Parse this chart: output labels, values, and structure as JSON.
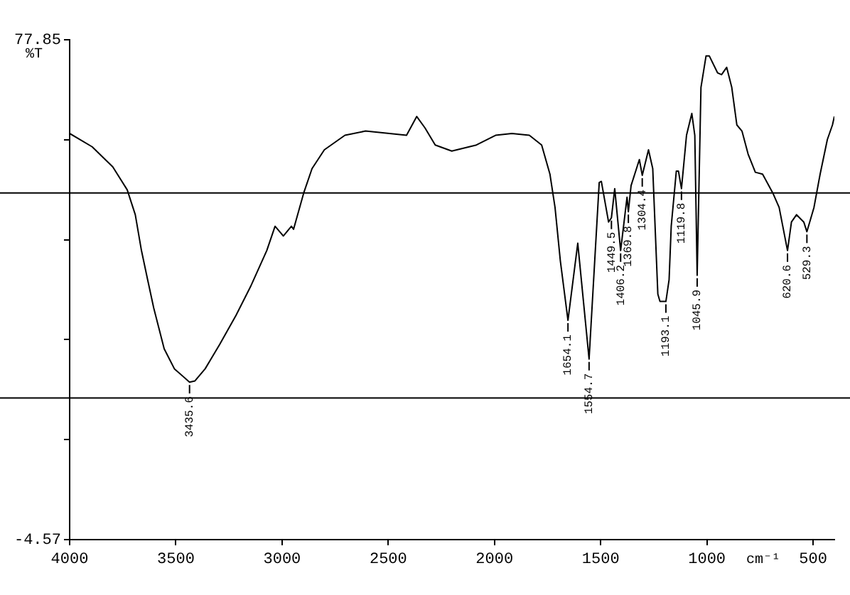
{
  "chart_data": {
    "type": "line",
    "ylabel": "%T",
    "xlabel": "cm⁻¹",
    "xlim": [
      4000,
      400
    ],
    "xticks": [
      4000,
      3500,
      3000,
      2500,
      2000,
      1500,
      1000,
      500
    ],
    "ylim": [
      -4.57,
      77.85
    ],
    "yticks": [
      {
        "value": 77.85,
        "label": "77.85"
      },
      {
        "value": 61.37,
        "label": null
      },
      {
        "value": 44.88,
        "label": null
      },
      {
        "value": 28.4,
        "label": null
      },
      {
        "value": 11.91,
        "label": null
      },
      {
        "value": -4.57,
        "label": "-4.57"
      }
    ],
    "grid": false,
    "legend": false,
    "marker": "none",
    "line_style": "solid",
    "series": [
      {
        "color": "#000000",
        "x": [
          4000,
          3894,
          3797,
          3729,
          3691,
          3662,
          3633,
          3604,
          3555,
          3507,
          3435.6,
          3410,
          3362,
          3294,
          3217,
          3149,
          3072,
          3033,
          2994,
          2956,
          2946,
          2898,
          2859,
          2801,
          2704,
          2607,
          2414,
          2366,
          2327,
          2279,
          2201,
          2085,
          1995,
          1918,
          1836,
          1778,
          1739,
          1715,
          1690,
          1654.1,
          1608,
          1554.7,
          1507,
          1497,
          1463,
          1449.5,
          1434,
          1406.2,
          1376,
          1369.8,
          1357,
          1318,
          1304.4,
          1275,
          1255,
          1231,
          1221,
          1193.1,
          1178,
          1168,
          1144,
          1134,
          1119.8,
          1096,
          1071,
          1057,
          1045.9,
          1028,
          1004,
          989,
          950,
          931,
          907,
          883,
          859,
          835,
          806,
          772,
          738,
          690,
          660,
          620.6,
          602,
          578,
          544,
          529.3,
          496,
          467,
          433,
          409,
          400
        ],
        "values": [
          62.4,
          60.2,
          56.9,
          53.1,
          49.0,
          43.1,
          38.3,
          33.6,
          26.9,
          23.6,
          21.4,
          21.6,
          23.6,
          27.6,
          32.4,
          37.1,
          43.1,
          47.1,
          45.5,
          47.1,
          46.6,
          52.6,
          56.6,
          59.7,
          62.1,
          62.8,
          62.1,
          65.2,
          63.3,
          60.5,
          59.5,
          60.5,
          62.1,
          62.4,
          62.1,
          60.5,
          55.7,
          50.2,
          41.4,
          31.6,
          44.3,
          25.2,
          54.3,
          54.5,
          47.8,
          48.5,
          53.3,
          43.1,
          51.9,
          49.5,
          53.8,
          58.1,
          55.5,
          59.7,
          56.6,
          35.9,
          34.7,
          34.7,
          38.3,
          47.1,
          56.2,
          56.2,
          53.3,
          62.1,
          65.7,
          62.1,
          39.0,
          70.0,
          75.2,
          75.2,
          72.4,
          72.1,
          73.3,
          70.0,
          63.8,
          62.8,
          59.0,
          56.0,
          55.7,
          52.6,
          50.2,
          43.1,
          47.8,
          49.0,
          47.8,
          46.2,
          50.2,
          55.7,
          61.4,
          63.8,
          65.2
        ]
      }
    ],
    "ref_lines": [
      {
        "axis": "y",
        "value": 52.6,
        "color": "#000000"
      },
      {
        "axis": "y",
        "value": 18.8,
        "color": "#000000"
      }
    ],
    "annotations": [
      {
        "text": "3435.6",
        "x": 3435.6,
        "y": 21.4
      },
      {
        "text": "1654.1",
        "x": 1654.1,
        "y": 31.6
      },
      {
        "text": "1554.7",
        "x": 1554.7,
        "y": 25.2
      },
      {
        "text": "1449.5",
        "x": 1449.5,
        "y": 48.5
      },
      {
        "text": "1406.2",
        "x": 1406.2,
        "y": 43.1
      },
      {
        "text": "1369.8",
        "x": 1369.8,
        "y": 49.5
      },
      {
        "text": "1304.4",
        "x": 1304.4,
        "y": 55.5
      },
      {
        "text": "1193.1",
        "x": 1193.1,
        "y": 34.7
      },
      {
        "text": "1119.8",
        "x": 1119.8,
        "y": 53.3
      },
      {
        "text": "1045.9",
        "x": 1045.9,
        "y": 39.0
      },
      {
        "text": "620.6",
        "x": 620.6,
        "y": 43.1
      },
      {
        "text": "529.3",
        "x": 529.3,
        "y": 46.2
      }
    ]
  }
}
